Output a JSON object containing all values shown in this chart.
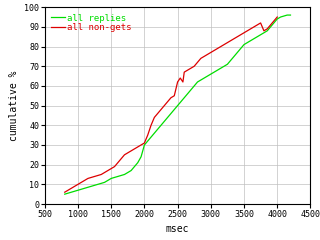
{
  "title": "",
  "xlabel": "msec",
  "ylabel": "cumulative %",
  "xlim": [
    500,
    4500
  ],
  "ylim": [
    0,
    100
  ],
  "xticks": [
    500,
    1000,
    1500,
    2000,
    2500,
    3000,
    3500,
    4000,
    4500
  ],
  "yticks": [
    0,
    10,
    20,
    30,
    40,
    50,
    60,
    70,
    80,
    90,
    100
  ],
  "bg_color": "#ffffff",
  "grid_color": "#c0c0c0",
  "legend": [
    {
      "label": "all replies",
      "color": "#00dd00"
    },
    {
      "label": "all non-gets",
      "color": "#dd0000"
    }
  ],
  "green_x": [
    800,
    850,
    900,
    950,
    1000,
    1050,
    1100,
    1150,
    1200,
    1250,
    1300,
    1350,
    1400,
    1450,
    1500,
    1550,
    1600,
    1650,
    1700,
    1750,
    1800,
    1850,
    1900,
    1950,
    2000,
    2050,
    2100,
    2150,
    2200,
    2250,
    2300,
    2350,
    2400,
    2450,
    2500,
    2550,
    2600,
    2650,
    2700,
    2750,
    2800,
    2850,
    2900,
    2950,
    3000,
    3050,
    3100,
    3150,
    3200,
    3250,
    3300,
    3350,
    3400,
    3450,
    3500,
    3550,
    3600,
    3650,
    3700,
    3750,
    3800,
    3850,
    3900,
    3950,
    4000,
    4050,
    4100,
    4150,
    4200
  ],
  "green_y": [
    5,
    5.5,
    6,
    6.5,
    7,
    7.5,
    8,
    8.5,
    9,
    9.5,
    10,
    10.5,
    11,
    12,
    13,
    13.5,
    14,
    14.5,
    15,
    16,
    17,
    19,
    21,
    24,
    30,
    32,
    34,
    36,
    38,
    40,
    42,
    44,
    46,
    48,
    50,
    52,
    54,
    56,
    58,
    60,
    62,
    63,
    64,
    65,
    66,
    67,
    68,
    69,
    70,
    71,
    73,
    75,
    77,
    79,
    81,
    82,
    83,
    84,
    85,
    86,
    87,
    88,
    90,
    92,
    94,
    95,
    95.5,
    96,
    96
  ],
  "red_x": [
    800,
    850,
    900,
    950,
    1000,
    1050,
    1100,
    1150,
    1200,
    1250,
    1300,
    1350,
    1400,
    1450,
    1500,
    1550,
    1600,
    1650,
    1700,
    1750,
    1800,
    1850,
    1900,
    1950,
    2000,
    2050,
    2100,
    2150,
    2200,
    2250,
    2300,
    2350,
    2400,
    2450,
    2500,
    2520,
    2540,
    2560,
    2580,
    2600,
    2650,
    2700,
    2750,
    2800,
    2850,
    2900,
    2950,
    3000,
    3050,
    3100,
    3150,
    3200,
    3250,
    3300,
    3350,
    3400,
    3450,
    3500,
    3550,
    3600,
    3650,
    3700,
    3750,
    3800,
    3850,
    3900,
    3950,
    4000
  ],
  "red_y": [
    6,
    7,
    8,
    9,
    10,
    11,
    12,
    13,
    13.5,
    14,
    14.5,
    15,
    16,
    17,
    18,
    19,
    21,
    23,
    25,
    26,
    27,
    28,
    29,
    30,
    31,
    35,
    40,
    44,
    46,
    48,
    50,
    52,
    54,
    55,
    62,
    63,
    64,
    63,
    62,
    67,
    68,
    69,
    70,
    72,
    74,
    75,
    76,
    77,
    78,
    79,
    80,
    81,
    82,
    83,
    84,
    85,
    86,
    87,
    88,
    89,
    90,
    91,
    92,
    88,
    89,
    91,
    93,
    95
  ],
  "tick_fontsize": 6,
  "label_fontsize": 7,
  "legend_fontsize": 6.5
}
